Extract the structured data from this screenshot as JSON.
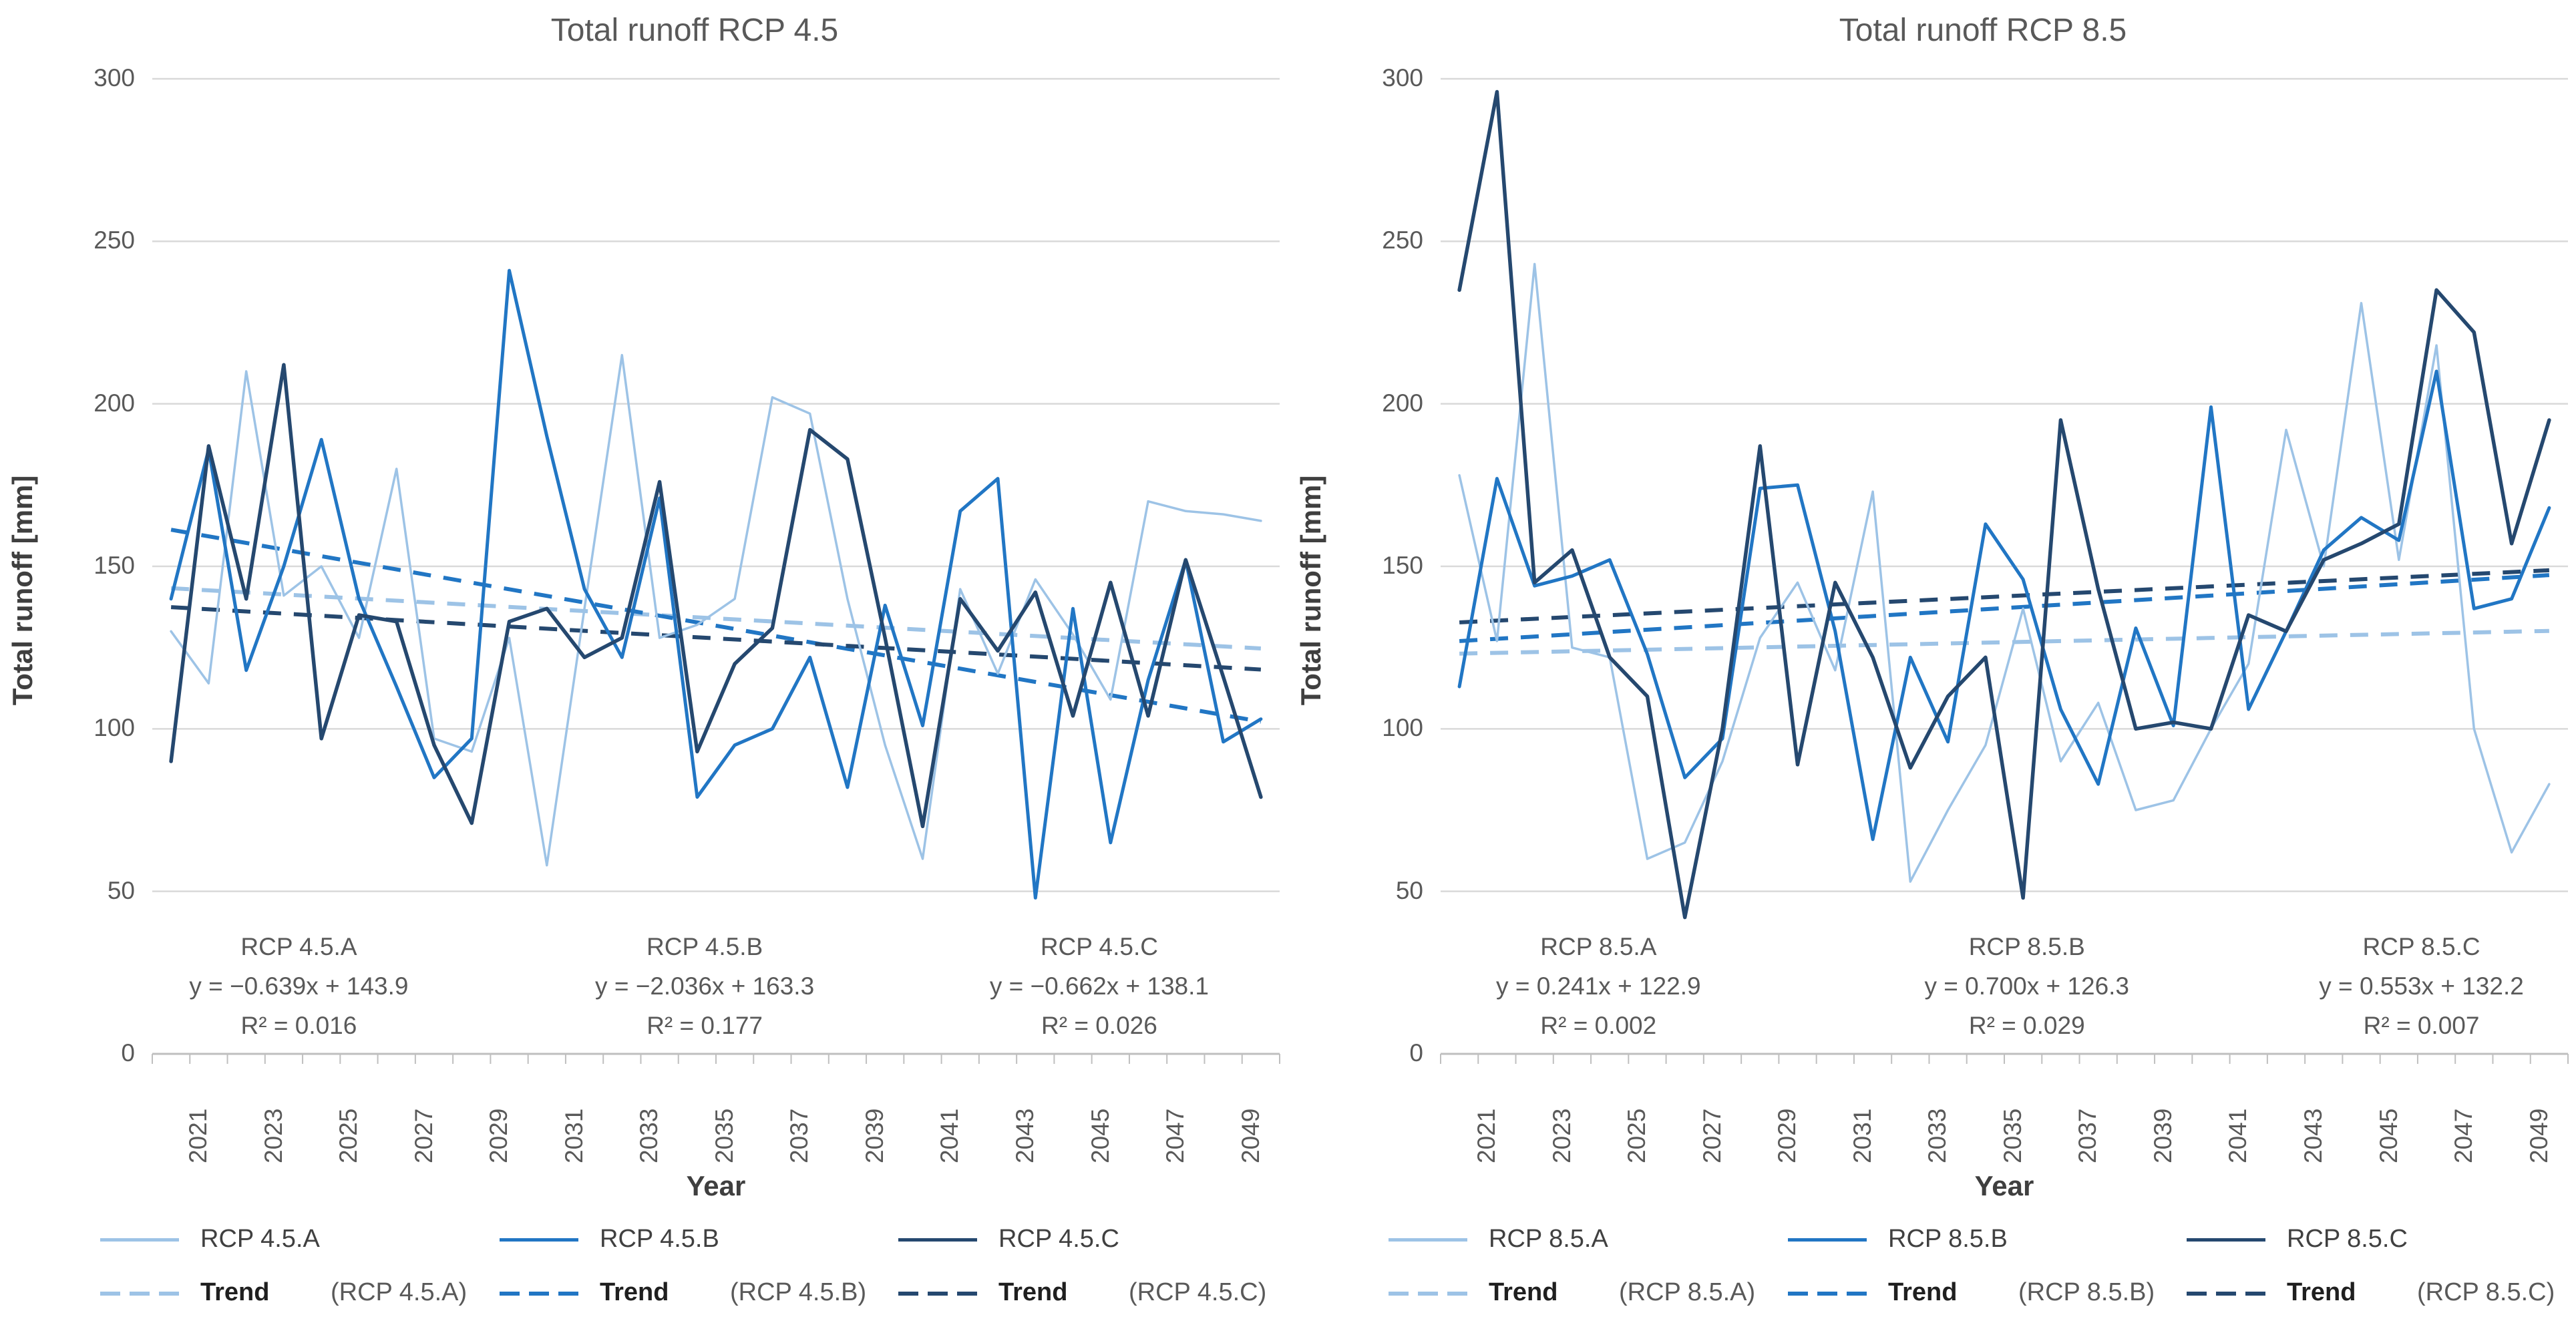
{
  "page_title": "Total runoff projections RCP 4.5 and RCP 8.5",
  "colors": {
    "series_a": "#9dc3e6",
    "series_b": "#2176c4",
    "series_c": "#25486f",
    "gridline": "#d9d9d9",
    "axis_line": "#bfbfbf",
    "tick_text": "#595959",
    "title_text": "#595959",
    "legend_text": "#404040"
  },
  "chart_data": [
    {
      "type": "line",
      "title": "Total runoff RCP 4.5",
      "y_label": "Total runoff [mm]",
      "x_label": "Year",
      "ylim": [
        0,
        300
      ],
      "y_ticks": [
        0,
        50,
        100,
        150,
        200,
        250,
        300
      ],
      "x_tick_labels": [
        "2021",
        "2023",
        "2025",
        "2027",
        "2029",
        "2031",
        "2033",
        "2035",
        "2037",
        "2039",
        "2041",
        "2043",
        "2045",
        "2047",
        "2049"
      ],
      "x": [
        2021,
        2022,
        2023,
        2024,
        2025,
        2026,
        2027,
        2028,
        2029,
        2030,
        2031,
        2032,
        2033,
        2034,
        2035,
        2036,
        2037,
        2038,
        2039,
        2040,
        2041,
        2042,
        2043,
        2044,
        2045,
        2046,
        2047,
        2048,
        2049,
        2050
      ],
      "grid": true,
      "legend_position": "bottom",
      "series": [
        {
          "name": "RCP 4.5.A",
          "color": "#9dc3e6",
          "width": 3.5,
          "values": [
            130,
            114,
            210,
            141,
            150,
            128,
            180,
            97,
            93,
            128,
            58,
            137,
            215,
            128,
            132,
            140,
            202,
            197,
            140,
            95,
            60,
            143,
            117,
            146,
            129,
            109,
            170,
            167,
            166,
            164
          ]
        },
        {
          "name": "RCP 4.5.B",
          "color": "#2176c4",
          "width": 5,
          "values": [
            140,
            186,
            118,
            150,
            189,
            140,
            113,
            85,
            97,
            241,
            190,
            143,
            122,
            171,
            79,
            95,
            100,
            122,
            82,
            138,
            101,
            167,
            177,
            48,
            137,
            65,
            115,
            152,
            96,
            103
          ]
        },
        {
          "name": "RCP 4.5.C",
          "color": "#25486f",
          "width": 5.5,
          "values": [
            90,
            187,
            140,
            212,
            97,
            135,
            133,
            95,
            71,
            133,
            137,
            122,
            128,
            176,
            93,
            120,
            131,
            192,
            183,
            128,
            70,
            140,
            124,
            142,
            104,
            145,
            104,
            152,
            116,
            79
          ]
        }
      ],
      "trendlines": [
        {
          "name": "Trend",
          "paren": "(RCP 4.5.A)",
          "color": "#9dc3e6",
          "slope": -0.639,
          "intercept": 143.9
        },
        {
          "name": "Trend",
          "paren": "(RCP 4.5.B)",
          "color": "#2176c4",
          "slope": -2.036,
          "intercept": 163.3
        },
        {
          "name": "Trend",
          "paren": "(RCP 4.5.C)",
          "color": "#25486f",
          "slope": -0.662,
          "intercept": 138.1
        }
      ],
      "annotations": [
        {
          "title": "RCP 4.5.A",
          "equation": "y = −0.639x + 143.9",
          "r2": "R² = 0.016",
          "x_frac": 0.13
        },
        {
          "title": "RCP 4.5.B",
          "equation": "y = −2.036x + 163.3",
          "r2": "R² = 0.177",
          "x_frac": 0.49
        },
        {
          "title": "RCP 4.5.C",
          "equation": "y = −0.662x + 138.1",
          "r2": "R² = 0.026",
          "x_frac": 0.84
        }
      ]
    },
    {
      "type": "line",
      "title": "Total runoff RCP 8.5",
      "y_label": "Total runoff [mm]",
      "x_label": "Year",
      "ylim": [
        0,
        300
      ],
      "y_ticks": [
        0,
        50,
        100,
        150,
        200,
        250,
        300
      ],
      "x_tick_labels": [
        "2021",
        "2023",
        "2025",
        "2027",
        "2029",
        "2031",
        "2033",
        "2035",
        "2037",
        "2039",
        "2041",
        "2043",
        "2045",
        "2047",
        "2049"
      ],
      "x": [
        2021,
        2022,
        2023,
        2024,
        2025,
        2026,
        2027,
        2028,
        2029,
        2030,
        2031,
        2032,
        2033,
        2034,
        2035,
        2036,
        2037,
        2038,
        2039,
        2040,
        2041,
        2042,
        2043,
        2044,
        2045,
        2046,
        2047,
        2048,
        2049,
        2050
      ],
      "grid": true,
      "legend_position": "bottom",
      "series": [
        {
          "name": "RCP 8.5.A",
          "color": "#9dc3e6",
          "width": 3.5,
          "values": [
            178,
            127,
            243,
            125,
            122,
            60,
            65,
            90,
            128,
            145,
            118,
            173,
            53,
            75,
            95,
            137,
            90,
            108,
            75,
            78,
            100,
            120,
            192,
            150,
            231,
            152,
            218,
            100,
            62,
            83
          ]
        },
        {
          "name": "RCP 8.5.B",
          "color": "#2176c4",
          "width": 5,
          "values": [
            113,
            177,
            144,
            147,
            152,
            123,
            85,
            97,
            174,
            175,
            130,
            66,
            122,
            96,
            163,
            146,
            106,
            83,
            131,
            101,
            199,
            106,
            130,
            155,
            165,
            158,
            210,
            137,
            140,
            168
          ]
        },
        {
          "name": "RCP 8.5.C",
          "color": "#25486f",
          "width": 5.5,
          "values": [
            235,
            296,
            145,
            155,
            122,
            110,
            42,
            100,
            187,
            89,
            145,
            122,
            88,
            110,
            122,
            48,
            195,
            143,
            100,
            102,
            100,
            135,
            130,
            152,
            157,
            163,
            235,
            222,
            157,
            195
          ]
        }
      ],
      "trendlines": [
        {
          "name": "Trend",
          "paren": "(RCP 8.5.A)",
          "color": "#9dc3e6",
          "slope": 0.241,
          "intercept": 122.9
        },
        {
          "name": "Trend",
          "paren": "(RCP 8.5.B)",
          "color": "#2176c4",
          "slope": 0.7,
          "intercept": 126.3
        },
        {
          "name": "Trend",
          "paren": "(RCP 8.5.C)",
          "color": "#25486f",
          "slope": 0.553,
          "intercept": 132.2
        }
      ],
      "annotations": [
        {
          "title": "RCP 8.5.A",
          "equation": "y = 0.241x + 122.9",
          "r2": "R² = 0.002",
          "x_frac": 0.14
        },
        {
          "title": "RCP 8.5.B",
          "equation": "y = 0.700x + 126.3",
          "r2": "R² = 0.029",
          "x_frac": 0.52
        },
        {
          "title": "RCP 8.5.C",
          "equation": "y = 0.553x + 132.2",
          "r2": "R² = 0.007",
          "x_frac": 0.87
        }
      ]
    }
  ]
}
